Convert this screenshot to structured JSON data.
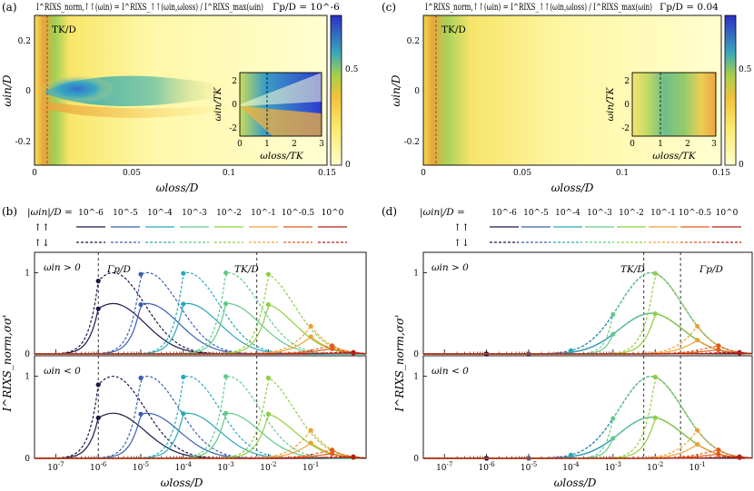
{
  "figure": {
    "panel_labels": [
      "(a)",
      "(b)",
      "(c)",
      "(d)"
    ],
    "tk_label": "TK/D",
    "gamma_label": "Γp/D",
    "win_pos_label": "ωin > 0",
    "win_neg_label": "ωin < 0"
  },
  "chart_data": [
    {
      "id": "a",
      "type": "heatmap",
      "title_left": "I^RIXS_norm,↑↑(ωin) = I^RIXS_↑↑(ωin,ωloss) / I^RIXS_max(ωin)",
      "title_right": "Γp/D = 10^-6",
      "xlabel": "ωloss/D",
      "ylabel": "ωin/D",
      "xlim": [
        0,
        0.15
      ],
      "ylim": [
        -0.3,
        0.3
      ],
      "xticks": [
        "0",
        "0.05",
        "0.1",
        "0.15"
      ],
      "yticks": [
        "0.2",
        "0",
        "-0.2"
      ],
      "colorbar": {
        "range": [
          0,
          0.8
        ],
        "ticks": [
          "0",
          "0.5"
        ]
      },
      "annotation": "TK/D",
      "inset": {
        "xlabel": "ωloss/TK",
        "ylabel": "ωin/TK",
        "xticks": [
          "0",
          "1",
          "2",
          "3"
        ],
        "yticks": [
          "2",
          "0",
          "-2"
        ]
      }
    },
    {
      "id": "c",
      "type": "heatmap",
      "title_left": "I^RIXS_norm,↑↑(ωin) = I^RIXS_↑↑(ωin,ωloss) / I^RIXS_max(ωin)",
      "title_right": "Γp/D = 0.04",
      "xlabel": "ωloss/D",
      "ylabel": "ωin/D",
      "xlim": [
        0,
        0.15
      ],
      "ylim": [
        -0.3,
        0.3
      ],
      "xticks": [
        "0",
        "0.05",
        "0.1",
        "0.15"
      ],
      "yticks": [
        "0.2",
        "0",
        "-0.2"
      ],
      "colorbar": {
        "range": [
          0,
          0.8
        ],
        "ticks": [
          "0",
          "0.5"
        ]
      },
      "annotation": "TK/D",
      "inset": {
        "xlabel": "ωloss/TK",
        "ylabel": "ωin/TK",
        "xticks": [
          "0",
          "1",
          "2",
          "3"
        ],
        "yticks": [
          "2",
          "0",
          "-2"
        ]
      }
    },
    {
      "id": "b",
      "type": "line",
      "xscale": "log",
      "xlabel": "ωloss/D",
      "ylabel": "I^RIXS_norm,σσ'",
      "xlim_exp": [
        -7.5,
        0.3
      ],
      "ylim": [
        0,
        1.25
      ],
      "xticks_exp": [
        -7,
        -6,
        -5,
        -4,
        -3,
        -2,
        -1
      ],
      "yticks": [
        "0",
        "1"
      ],
      "vlines": {
        "gamma_exp": -6,
        "tk_exp": -2.27
      },
      "legend": {
        "header": "|ωin|/D =",
        "values": [
          "10^-6",
          "10^-5",
          "10^-4",
          "10^-3",
          "10^-2",
          "10^-1",
          "10^-0.5",
          "10^0"
        ],
        "row_labels": [
          "↑↑",
          "↑↓"
        ]
      },
      "series": [
        {
          "win_exp": -6,
          "color": "#1f1646",
          "peak_exp": -5.65
        },
        {
          "win_exp": -5,
          "color": "#3a5fb0",
          "peak_exp": -4.85
        },
        {
          "win_exp": -4,
          "color": "#2aa8b8",
          "peak_exp": -3.9
        },
        {
          "win_exp": -3,
          "color": "#63c98a",
          "peak_exp": -2.95
        },
        {
          "win_exp": -2,
          "color": "#8fcf3e",
          "peak_exp": -2.15
        },
        {
          "win_exp": -1,
          "color": "#f0a030",
          "peak_exp": -2.1
        },
        {
          "win_exp": -0.5,
          "color": "#e45b1a",
          "peak_exp": -2.1
        },
        {
          "win_exp": 0,
          "color": "#b01f16",
          "peak_exp": -2.1
        }
      ],
      "upper_peak": {
        "same_spin": 0.62,
        "opposite_spin": 1.0
      },
      "lower_peak": {
        "same_spin": 0.55,
        "opposite_spin": 1.0
      }
    },
    {
      "id": "d",
      "type": "line",
      "xscale": "log",
      "xlabel": "ωloss/D",
      "ylabel": "I^RIXS_norm,σσ'",
      "xlim_exp": [
        -7.5,
        0.3
      ],
      "ylim": [
        0,
        1.25
      ],
      "xticks_exp": [
        -7,
        -6,
        -5,
        -4,
        -3,
        -2,
        -1
      ],
      "yticks": [
        "0",
        "1"
      ],
      "vlines": {
        "tk_exp": -2.27,
        "gamma_exp": -1.4
      },
      "legend": {
        "header": "|ωin|/D =",
        "values": [
          "10^-6",
          "10^-5",
          "10^-4",
          "10^-3",
          "10^-2",
          "10^-1",
          "10^-0.5",
          "10^0"
        ],
        "row_labels": [
          "↑↑",
          "↑↓"
        ]
      },
      "series": [
        {
          "win_exp": -6,
          "color": "#1f1646",
          "peak_exp": -2.1
        },
        {
          "win_exp": -5,
          "color": "#3a5fb0",
          "peak_exp": -2.1
        },
        {
          "win_exp": -4,
          "color": "#2aa8b8",
          "peak_exp": -2.1
        },
        {
          "win_exp": -3,
          "color": "#63c98a",
          "peak_exp": -2.1
        },
        {
          "win_exp": -2,
          "color": "#8fcf3e",
          "peak_exp": -2.1
        },
        {
          "win_exp": -1,
          "color": "#f0a030",
          "peak_exp": -2.1
        },
        {
          "win_exp": -0.5,
          "color": "#e45b1a",
          "peak_exp": -2.1
        },
        {
          "win_exp": 0,
          "color": "#b01f16",
          "peak_exp": -2.1
        }
      ],
      "upper_peak": {
        "same_spin": 0.5,
        "opposite_spin": 1.0
      },
      "lower_peak": {
        "same_spin": 0.5,
        "opposite_spin": 1.0
      }
    }
  ]
}
